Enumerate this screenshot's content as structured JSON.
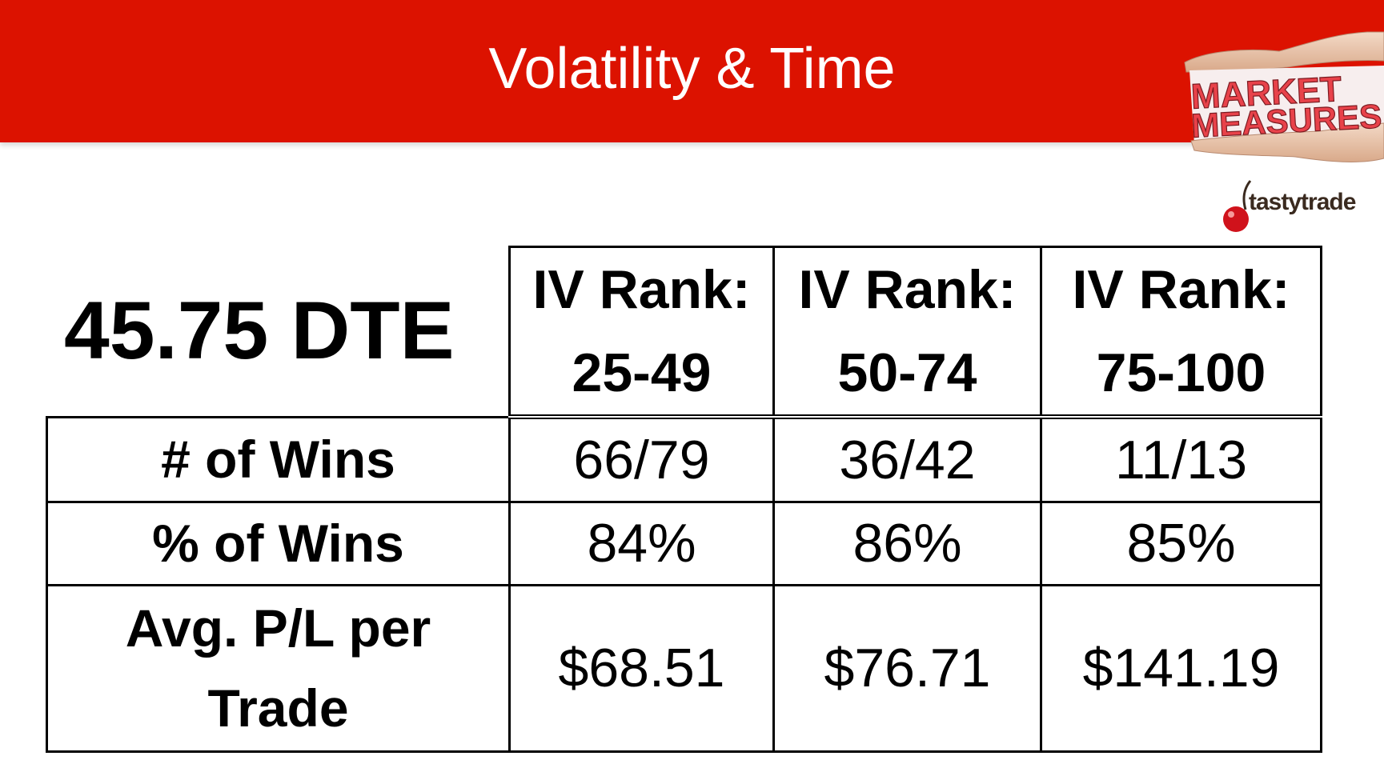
{
  "slide": {
    "title": "Volatility & Time",
    "brand_color": "#dc1200",
    "logos": {
      "market_measures_line1": "MARKET",
      "market_measures_line2": "MEASURES",
      "tastytrade": "tastytrade"
    }
  },
  "table": {
    "corner_label": "45.75 DTE",
    "columns": [
      {
        "line1": "IV Rank:",
        "line2": "25-49"
      },
      {
        "line1": "IV Rank:",
        "line2": "50-74"
      },
      {
        "line1": "IV Rank:",
        "line2": "75-100"
      }
    ],
    "rows": [
      {
        "label": "# of Wins",
        "values": [
          "66/79",
          "36/42",
          "11/13"
        ]
      },
      {
        "label": "% of Wins",
        "values": [
          "84%",
          "86%",
          "85%"
        ]
      },
      {
        "label_line1": "Avg. P/L per",
        "label_line2": "Trade",
        "values": [
          "$68.51",
          "$76.71",
          "$141.19"
        ]
      }
    ]
  }
}
